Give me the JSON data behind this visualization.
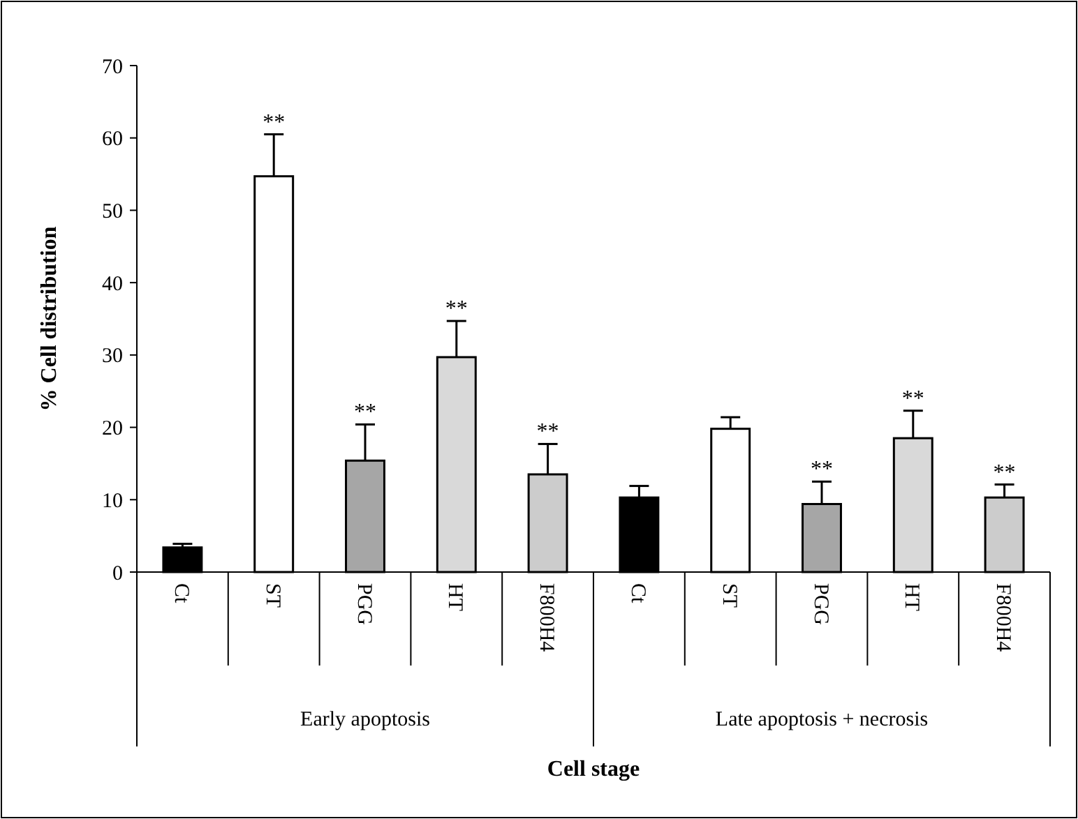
{
  "chart_data": {
    "type": "bar",
    "xlabel": "Cell stage",
    "ylabel": "% Cell distribution",
    "categories": [
      "Ct",
      "ST",
      "PGG",
      "HT",
      "F800H4",
      "Ct",
      "ST",
      "PGG",
      "HT",
      "F800H4"
    ],
    "values": [
      3.4,
      54.7,
      15.4,
      29.7,
      13.5,
      10.3,
      19.8,
      9.4,
      18.5,
      10.3
    ],
    "errors": [
      0.5,
      5.8,
      5.0,
      5.0,
      4.2,
      1.6,
      1.6,
      3.1,
      3.8,
      1.8
    ],
    "colors": [
      "#000000",
      "#ffffff",
      "#a6a6a6",
      "#d9d9d9",
      "#cccccc",
      "#000000",
      "#ffffff",
      "#a6a6a6",
      "#d9d9d9",
      "#cccccc"
    ],
    "value_labels": [
      null,
      "**",
      "**",
      "**",
      "**",
      null,
      null,
      "**",
      "**",
      "**"
    ],
    "annotations": [
      "Early apoptosis",
      "Late apoptosis + necrosis"
    ],
    "ylim": [
      0,
      70
    ],
    "yticks": [
      0,
      10,
      20,
      30,
      40,
      50,
      60,
      70
    ],
    "grid": false
  }
}
